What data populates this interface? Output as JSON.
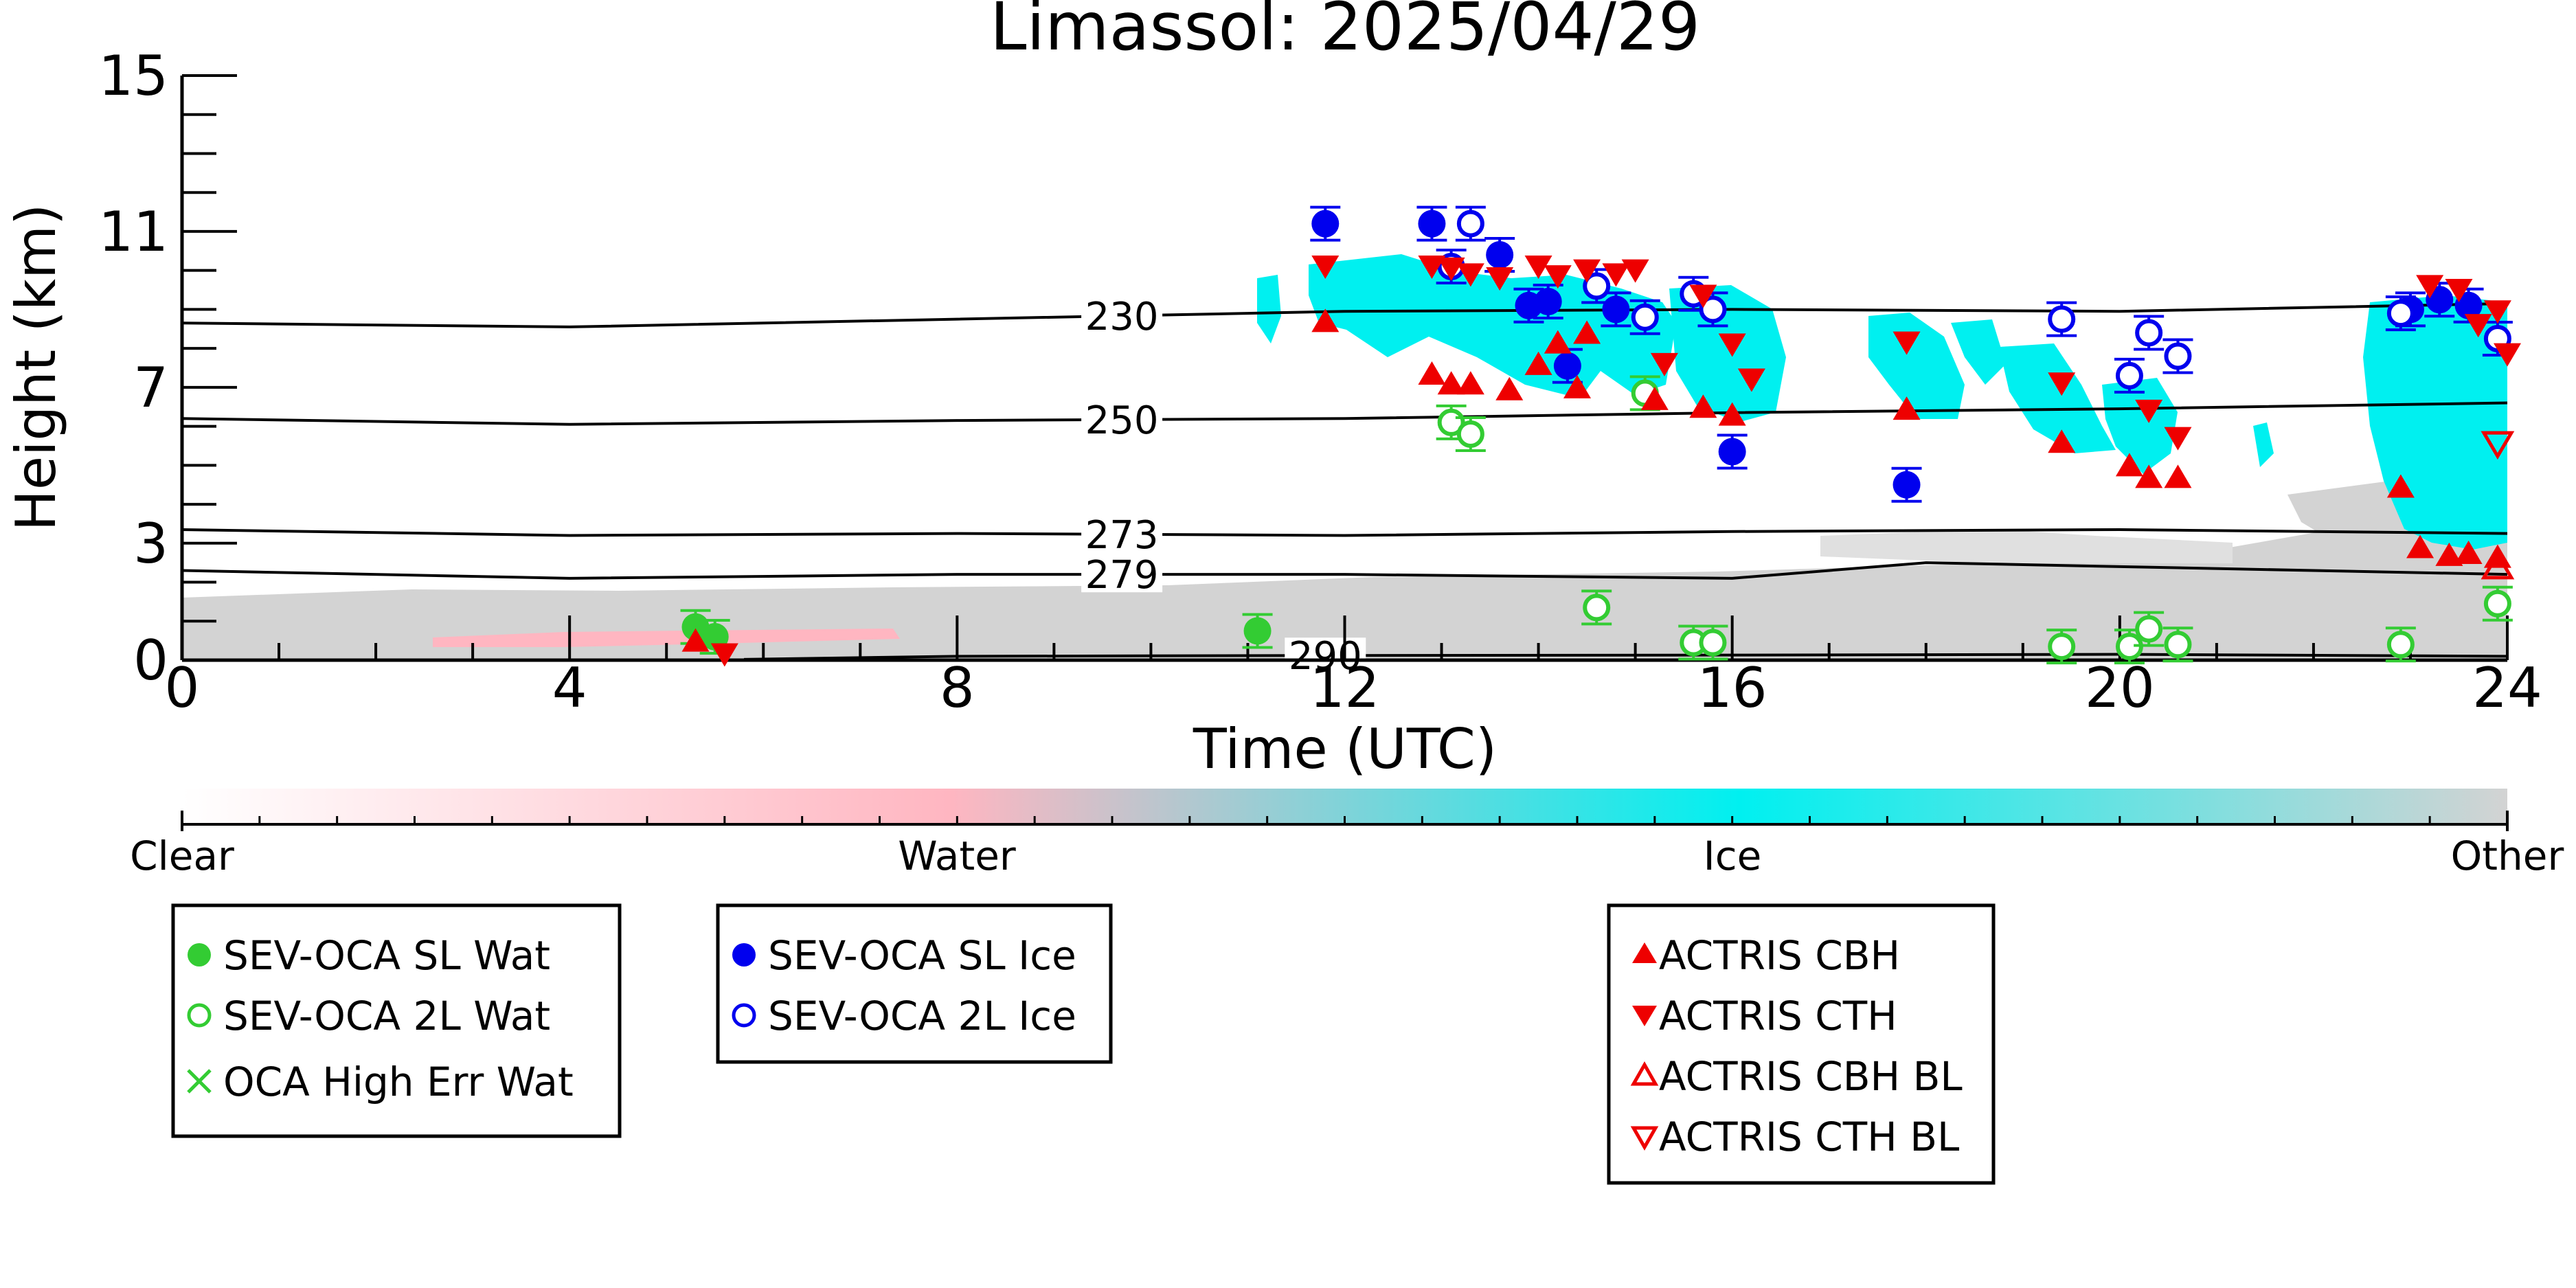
{
  "chart_data": {
    "type": "scatter",
    "title": "Limassol: 2025/04/29",
    "xlabel": "Time (UTC)",
    "ylabel": "Height (km)",
    "xlim": [
      0,
      24
    ],
    "ylim": [
      0,
      15
    ],
    "x_ticks": [
      "0",
      "4",
      "8",
      "12",
      "16",
      "20",
      "24"
    ],
    "y_ticks": [
      "0",
      "3",
      "7",
      "11",
      "15"
    ],
    "grid": false,
    "colors": {
      "clear": "#ffffff",
      "water": "#ffb6c1",
      "ice": "#00f0f0",
      "other": "#d3d3d3",
      "ocaWater": "#33cc33",
      "ocaIce": "#0000ee",
      "actris": "#ee0000"
    },
    "colorbar": {
      "labels": [
        "Clear",
        "Water",
        "Ice",
        "Other"
      ]
    },
    "contours": [
      {
        "label": "230",
        "points": [
          [
            0,
            8.65
          ],
          [
            4,
            8.55
          ],
          [
            8,
            8.75
          ],
          [
            12,
            8.95
          ],
          [
            16,
            9.0
          ],
          [
            20,
            8.95
          ],
          [
            24,
            9.15
          ]
        ]
      },
      {
        "label": "250",
        "points": [
          [
            0,
            6.2
          ],
          [
            4,
            6.05
          ],
          [
            8,
            6.15
          ],
          [
            12,
            6.2
          ],
          [
            16,
            6.35
          ],
          [
            20,
            6.45
          ],
          [
            24,
            6.6
          ]
        ]
      },
      {
        "label": "273",
        "points": [
          [
            0,
            3.35
          ],
          [
            4,
            3.2
          ],
          [
            8,
            3.25
          ],
          [
            12,
            3.2
          ],
          [
            16,
            3.3
          ],
          [
            20,
            3.35
          ],
          [
            24,
            3.25
          ]
        ]
      },
      {
        "label": "279",
        "points": [
          [
            0,
            2.3
          ],
          [
            4,
            2.1
          ],
          [
            8,
            2.2
          ],
          [
            12,
            2.2
          ],
          [
            16,
            2.1
          ],
          [
            18,
            2.5
          ],
          [
            20,
            2.4
          ],
          [
            24,
            2.2
          ]
        ]
      },
      {
        "label": "290",
        "points": [
          [
            5.8,
            0.02
          ],
          [
            8,
            0.1
          ],
          [
            12,
            0.12
          ],
          [
            16,
            0.13
          ],
          [
            20,
            0.15
          ],
          [
            24,
            0.1
          ]
        ]
      }
    ],
    "series": [
      {
        "name": "SEV-OCA SL Wat",
        "marker": "filled-circle",
        "color": "#33cc33",
        "points": [
          [
            5.3,
            0.85
          ],
          [
            5.5,
            0.6
          ],
          [
            11.1,
            0.75
          ]
        ]
      },
      {
        "name": "SEV-OCA 2L Wat",
        "marker": "open-circle",
        "color": "#33cc33",
        "points": [
          [
            13.1,
            6.1
          ],
          [
            13.3,
            5.8
          ],
          [
            14.6,
            1.35
          ],
          [
            15.1,
            6.85
          ],
          [
            15.6,
            0.45
          ],
          [
            15.8,
            0.45
          ],
          [
            19.4,
            0.35
          ],
          [
            20.1,
            0.35
          ],
          [
            20.3,
            0.8
          ],
          [
            20.6,
            0.4
          ],
          [
            22.9,
            0.4
          ],
          [
            23.9,
            1.45
          ]
        ]
      },
      {
        "name": "OCA High Err Wat",
        "marker": "x",
        "color": "#33cc33",
        "points": []
      },
      {
        "name": "SEV-OCA SL Ice",
        "marker": "filled-circle",
        "color": "#0000ee",
        "points": [
          [
            11.8,
            11.2
          ],
          [
            12.9,
            11.2
          ],
          [
            13.6,
            10.4
          ],
          [
            13.9,
            9.1
          ],
          [
            14.1,
            9.2
          ],
          [
            14.3,
            7.55
          ],
          [
            14.8,
            9.0
          ],
          [
            16.0,
            5.35
          ],
          [
            17.8,
            4.5
          ],
          [
            23.0,
            9.0
          ],
          [
            23.3,
            9.25
          ],
          [
            23.6,
            9.1
          ]
        ]
      },
      {
        "name": "SEV-OCA 2L Ice",
        "marker": "open-circle",
        "color": "#0000ee",
        "points": [
          [
            13.1,
            10.1
          ],
          [
            13.3,
            11.2
          ],
          [
            14.6,
            9.6
          ],
          [
            15.1,
            8.8
          ],
          [
            15.6,
            9.4
          ],
          [
            15.8,
            9.0
          ],
          [
            19.4,
            8.75
          ],
          [
            20.1,
            7.3
          ],
          [
            20.3,
            8.4
          ],
          [
            20.6,
            7.8
          ],
          [
            22.9,
            8.9
          ],
          [
            23.9,
            8.25
          ]
        ]
      },
      {
        "name": "ACTRIS CBH",
        "marker": "triangle-up",
        "color": "#ee0000",
        "points": [
          [
            5.3,
            0.5
          ],
          [
            11.8,
            8.7
          ],
          [
            12.9,
            7.35
          ],
          [
            13.1,
            7.1
          ],
          [
            13.3,
            7.1
          ],
          [
            13.7,
            6.95
          ],
          [
            14.0,
            7.6
          ],
          [
            14.2,
            8.15
          ],
          [
            14.4,
            7.0
          ],
          [
            14.5,
            8.4
          ],
          [
            15.2,
            6.7
          ],
          [
            15.7,
            6.5
          ],
          [
            16.0,
            6.3
          ],
          [
            17.8,
            6.45
          ],
          [
            19.4,
            5.6
          ],
          [
            20.1,
            5.0
          ],
          [
            20.3,
            4.7
          ],
          [
            20.6,
            4.7
          ],
          [
            22.9,
            4.45
          ],
          [
            23.1,
            2.9
          ],
          [
            23.4,
            2.7
          ],
          [
            23.6,
            2.75
          ],
          [
            23.9,
            2.65
          ]
        ]
      },
      {
        "name": "ACTRIS CTH",
        "marker": "triangle-down",
        "color": "#ee0000",
        "points": [
          [
            5.6,
            0.15
          ],
          [
            11.8,
            10.1
          ],
          [
            12.9,
            10.1
          ],
          [
            13.1,
            10.05
          ],
          [
            13.3,
            9.9
          ],
          [
            13.6,
            9.8
          ],
          [
            14.0,
            10.1
          ],
          [
            14.2,
            9.85
          ],
          [
            14.5,
            10.0
          ],
          [
            14.8,
            9.9
          ],
          [
            15.0,
            10.0
          ],
          [
            15.3,
            7.6
          ],
          [
            15.7,
            9.35
          ],
          [
            16.0,
            8.1
          ],
          [
            16.2,
            7.2
          ],
          [
            17.8,
            8.15
          ],
          [
            19.4,
            7.1
          ],
          [
            20.3,
            6.4
          ],
          [
            20.6,
            5.7
          ],
          [
            23.2,
            9.6
          ],
          [
            23.5,
            9.5
          ],
          [
            23.7,
            8.6
          ],
          [
            23.9,
            8.95
          ],
          [
            24.0,
            7.85
          ]
        ]
      },
      {
        "name": "ACTRIS CBH BL",
        "marker": "open-triangle-up",
        "color": "#ee0000",
        "points": [
          [
            23.9,
            2.4
          ]
        ]
      },
      {
        "name": "ACTRIS CTH BL",
        "marker": "open-triangle-down",
        "color": "#ee0000",
        "points": [
          [
            23.9,
            5.55
          ]
        ]
      }
    ],
    "legend_placement": "bottom"
  }
}
